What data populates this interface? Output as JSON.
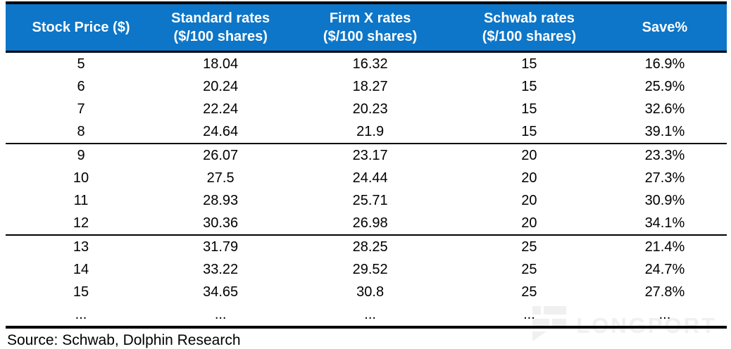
{
  "table": {
    "columns": [
      {
        "key": "price",
        "line1": "Stock Price ($)",
        "line2": ""
      },
      {
        "key": "standard",
        "line1": "Standard rates",
        "line2": "($/100 shares)"
      },
      {
        "key": "firmx",
        "line1": "Firm X rates",
        "line2": "($/100 shares)"
      },
      {
        "key": "schwab",
        "line1": "Schwab rates",
        "line2": "($/100 shares)"
      },
      {
        "key": "save",
        "line1": "Save%",
        "line2": ""
      }
    ],
    "rows": [
      {
        "price": "5",
        "standard": "18.04",
        "firmx": "16.32",
        "schwab": "15",
        "save": "16.9%",
        "group_end": false
      },
      {
        "price": "6",
        "standard": "20.24",
        "firmx": "18.27",
        "schwab": "15",
        "save": "25.9%",
        "group_end": false
      },
      {
        "price": "7",
        "standard": "22.24",
        "firmx": "20.23",
        "schwab": "15",
        "save": "32.6%",
        "group_end": false
      },
      {
        "price": "8",
        "standard": "24.64",
        "firmx": "21.9",
        "schwab": "15",
        "save": "39.1%",
        "group_end": true
      },
      {
        "price": "9",
        "standard": "26.07",
        "firmx": "23.17",
        "schwab": "20",
        "save": "23.3%",
        "group_end": false
      },
      {
        "price": "10",
        "standard": "27.5",
        "firmx": "24.44",
        "schwab": "20",
        "save": "27.3%",
        "group_end": false
      },
      {
        "price": "11",
        "standard": "28.93",
        "firmx": "25.71",
        "schwab": "20",
        "save": "30.9%",
        "group_end": false
      },
      {
        "price": "12",
        "standard": "30.36",
        "firmx": "26.98",
        "schwab": "20",
        "save": "34.1%",
        "group_end": true
      },
      {
        "price": "13",
        "standard": "31.79",
        "firmx": "28.25",
        "schwab": "25",
        "save": "21.4%",
        "group_end": false
      },
      {
        "price": "14",
        "standard": "33.22",
        "firmx": "29.52",
        "schwab": "25",
        "save": "24.7%",
        "group_end": false
      },
      {
        "price": "15",
        "standard": "34.65",
        "firmx": "30.8",
        "schwab": "25",
        "save": "27.8%",
        "group_end": false
      },
      {
        "price": "...",
        "standard": "...",
        "firmx": "...",
        "schwab": "...",
        "save": "...",
        "group_end": false
      }
    ]
  },
  "source": "Source: Schwab, Dolphin Research",
  "watermark": {
    "text": "LONGPORT"
  },
  "colors": {
    "header_bg": "#0d76c8",
    "header_text": "#ffffff",
    "border": "#000000",
    "watermark": "#f0f0f0"
  },
  "chart_data": {
    "type": "table",
    "title": "",
    "columns": [
      "Stock Price ($)",
      "Standard rates ($/100 shares)",
      "Firm X rates ($/100 shares)",
      "Schwab rates ($/100 shares)",
      "Save%"
    ],
    "rows": [
      [
        5,
        18.04,
        16.32,
        15,
        "16.9%"
      ],
      [
        6,
        20.24,
        18.27,
        15,
        "25.9%"
      ],
      [
        7,
        22.24,
        20.23,
        15,
        "32.6%"
      ],
      [
        8,
        24.64,
        21.9,
        15,
        "39.1%"
      ],
      [
        9,
        26.07,
        23.17,
        20,
        "23.3%"
      ],
      [
        10,
        27.5,
        24.44,
        20,
        "27.3%"
      ],
      [
        11,
        28.93,
        25.71,
        20,
        "30.9%"
      ],
      [
        12,
        30.36,
        26.98,
        20,
        "34.1%"
      ],
      [
        13,
        31.79,
        28.25,
        25,
        "21.4%"
      ],
      [
        14,
        33.22,
        29.52,
        25,
        "24.7%"
      ],
      [
        15,
        34.65,
        30.8,
        25,
        "27.8%"
      ],
      [
        "...",
        "...",
        "...",
        "...",
        "..."
      ]
    ],
    "group_separators_after_row_index": [
      3,
      7
    ],
    "source": "Source: Schwab, Dolphin Research"
  }
}
